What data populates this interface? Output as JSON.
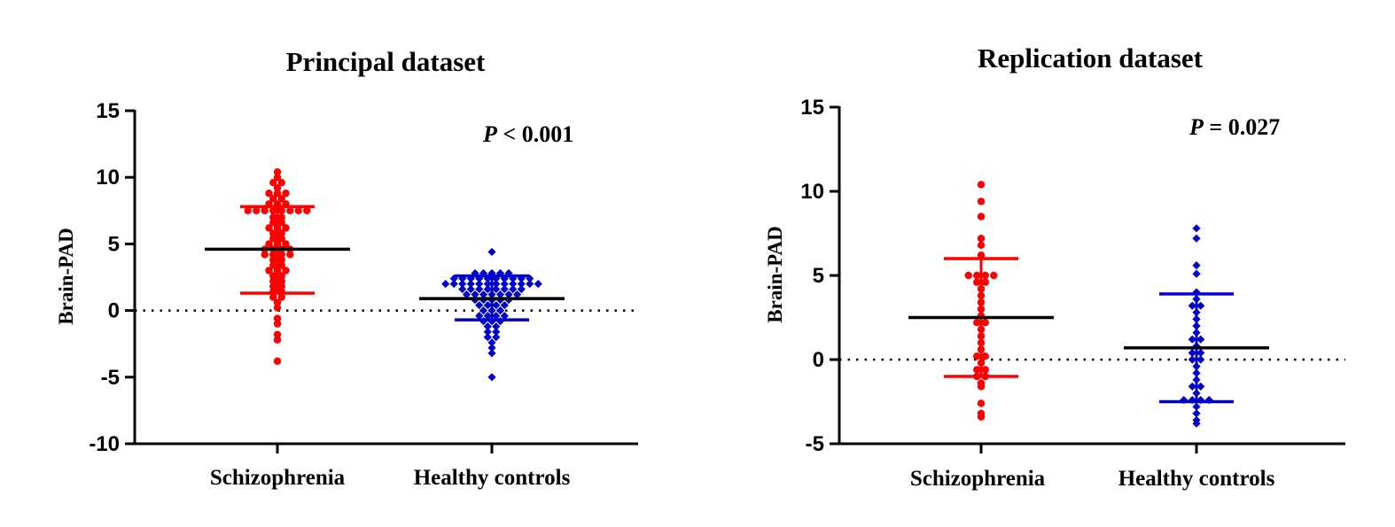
{
  "chart_data": [
    {
      "type": "scatter",
      "subtype": "dot-plot",
      "title": "Principal dataset",
      "ylabel": "Brain-PAD",
      "xlabel": "",
      "ylim": [
        -10,
        15
      ],
      "yticks": [
        15,
        10,
        5,
        0,
        -5,
        -10
      ],
      "ytick_labels": [
        "15",
        "10",
        "5",
        "0",
        "-5",
        "-10"
      ],
      "categories": [
        "Schizophrenia",
        "Healthy controls"
      ],
      "p_value": {
        "prefix": "P",
        "text": " < 0.001"
      },
      "reference_line": 0,
      "colors": {
        "schizophrenia": "#ff0000",
        "healthy": "#0000cc",
        "mean": "#000000"
      },
      "series": [
        {
          "name": "Schizophrenia",
          "marker": "circle",
          "color": "#ff0000",
          "mean": 4.6,
          "sd_low": 1.3,
          "sd_high": 7.8,
          "values": [
            10.4,
            10.0,
            9.6,
            9.6,
            9.2,
            8.8,
            8.8,
            8.8,
            8.4,
            8.4,
            8.0,
            8.0,
            8.0,
            7.5,
            7.5,
            7.5,
            7.5,
            7.5,
            7.5,
            7.5,
            7.5,
            7.0,
            7.0,
            6.6,
            6.6,
            6.2,
            6.2,
            6.2,
            5.8,
            5.8,
            5.4,
            5.4,
            5.0,
            5.0,
            5.0,
            4.6,
            4.6,
            4.6,
            4.6,
            4.2,
            4.2,
            4.2,
            4.2,
            3.8,
            3.8,
            3.4,
            3.4,
            3.0,
            3.0,
            3.0,
            2.6,
            2.6,
            2.2,
            2.2,
            1.8,
            1.8,
            1.4,
            1.4,
            1.0,
            1.0,
            0.6,
            0.2,
            -0.6,
            -1.0,
            -1.8,
            -2.2,
            -3.8
          ]
        },
        {
          "name": "Healthy controls",
          "marker": "diamond",
          "color": "#0000cc",
          "mean": 0.9,
          "sd_low": -0.7,
          "sd_high": 2.6,
          "values": [
            4.4,
            2.8,
            2.8,
            2.8,
            2.8,
            2.8,
            2.4,
            2.4,
            2.4,
            2.4,
            2.4,
            2.4,
            2.4,
            2.4,
            2.4,
            2.4,
            2.0,
            2.0,
            2.0,
            2.0,
            2.0,
            2.0,
            2.0,
            2.0,
            2.0,
            2.0,
            2.0,
            2.0,
            1.6,
            1.6,
            1.6,
            1.6,
            1.6,
            1.6,
            1.6,
            1.6,
            1.2,
            1.2,
            1.2,
            1.2,
            1.2,
            1.2,
            1.2,
            0.8,
            0.8,
            0.8,
            0.8,
            0.8,
            0.4,
            0.4,
            0.4,
            0.4,
            0.0,
            0.0,
            0.0,
            -0.4,
            -0.4,
            -0.4,
            -0.4,
            -0.8,
            -0.8,
            -0.8,
            -1.2,
            -1.2,
            -1.6,
            -1.6,
            -2.0,
            -2.0,
            -2.4,
            -2.8,
            -3.2,
            -5.0
          ]
        }
      ]
    },
    {
      "type": "scatter",
      "subtype": "dot-plot",
      "title": "Replication dataset",
      "ylabel": "Brain-PAD",
      "xlabel": "",
      "ylim": [
        -5,
        15
      ],
      "yticks": [
        15,
        10,
        5,
        0,
        -5
      ],
      "ytick_labels": [
        "15",
        "10",
        "5",
        "0",
        "-5"
      ],
      "categories": [
        "Schizophrenia",
        "Healthy controls"
      ],
      "p_value": {
        "prefix": "P",
        "text": " = 0.027"
      },
      "reference_line": 0,
      "colors": {
        "schizophrenia": "#ff0000",
        "healthy": "#0000cc",
        "mean": "#000000"
      },
      "series": [
        {
          "name": "Schizophrenia",
          "marker": "circle",
          "color": "#ff0000",
          "mean": 2.5,
          "sd_low": -1.0,
          "sd_high": 6.0,
          "values": [
            10.4,
            9.4,
            8.5,
            7.2,
            6.8,
            6.2,
            5.0,
            5.0,
            5.0,
            5.0,
            4.6,
            4.6,
            4.2,
            3.8,
            3.4,
            3.0,
            2.6,
            2.2,
            2.2,
            1.8,
            1.4,
            1.0,
            0.6,
            0.2,
            0.2,
            -0.2,
            -0.6,
            -0.6,
            -1.0,
            -1.0,
            -1.4,
            -1.6,
            -2.6,
            -3.2,
            -3.4
          ]
        },
        {
          "name": "Healthy controls",
          "marker": "diamond",
          "color": "#0000cc",
          "mean": 0.7,
          "sd_low": -2.5,
          "sd_high": 3.9,
          "values": [
            7.8,
            7.2,
            5.6,
            5.1,
            4.0,
            3.6,
            3.2,
            3.2,
            2.8,
            2.4,
            2.0,
            1.6,
            1.2,
            1.2,
            0.8,
            0.4,
            0.4,
            0.0,
            0.0,
            -0.4,
            -0.8,
            -1.2,
            -1.6,
            -1.6,
            -2.0,
            -2.4,
            -2.4,
            -2.4,
            -2.4,
            -2.8,
            -3.2,
            -3.6,
            -3.8
          ]
        }
      ]
    }
  ]
}
